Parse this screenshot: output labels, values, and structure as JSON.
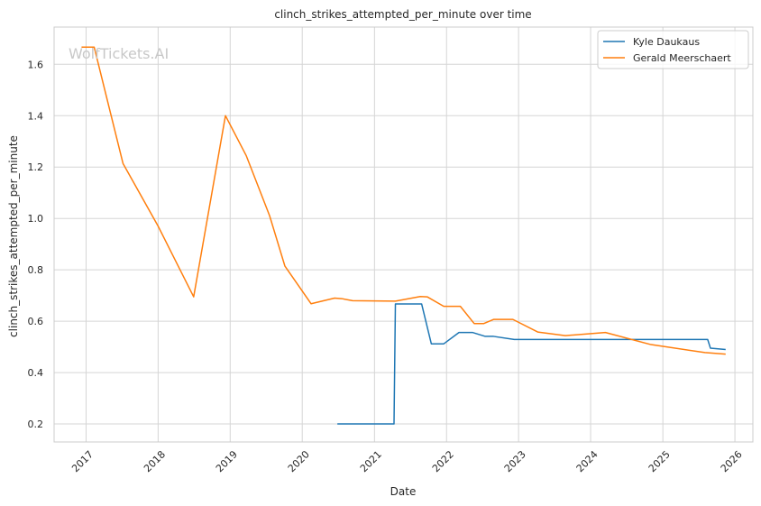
{
  "chart_data": {
    "type": "line",
    "title": "clinch_strikes_attempted_per_minute over time",
    "xlabel": "Date",
    "ylabel": "clinch_strikes_attempted_per_minute",
    "watermark": "WolfTickets.AI",
    "x_ticks": [
      "2017",
      "2018",
      "2019",
      "2020",
      "2021",
      "2022",
      "2023",
      "2024",
      "2025",
      "2026"
    ],
    "y_ticks": [
      "0.2",
      "0.4",
      "0.6",
      "0.8",
      "1.0",
      "1.2",
      "1.4",
      "1.6"
    ],
    "xlim": [
      "2016-07-23",
      "2026-04-02"
    ],
    "ylim": [
      0.13,
      1.745
    ],
    "grid": true,
    "legend_position": "top-right",
    "series": [
      {
        "name": "Kyle Daukaus",
        "color": "#1f77b4",
        "points": [
          {
            "x": "2020-06-27",
            "y": 0.2
          },
          {
            "x": "2021-04-10",
            "y": 0.2
          },
          {
            "x": "2021-04-17",
            "y": 0.667
          },
          {
            "x": "2021-08-28",
            "y": 0.667
          },
          {
            "x": "2021-10-16",
            "y": 0.512
          },
          {
            "x": "2021-12-18",
            "y": 0.512
          },
          {
            "x": "2022-03-05",
            "y": 0.556
          },
          {
            "x": "2022-05-14",
            "y": 0.556
          },
          {
            "x": "2022-07-16",
            "y": 0.541
          },
          {
            "x": "2022-08-27",
            "y": 0.541
          },
          {
            "x": "2022-12-10",
            "y": 0.529
          },
          {
            "x": "2025-08-16",
            "y": 0.529
          },
          {
            "x": "2025-08-30",
            "y": 0.495
          },
          {
            "x": "2025-11-15",
            "y": 0.49
          }
        ]
      },
      {
        "name": "Gerald Meerschaert",
        "color": "#ff7f0e",
        "points": [
          {
            "x": "2016-12-09",
            "y": 1.667
          },
          {
            "x": "2017-02-11",
            "y": 1.667
          },
          {
            "x": "2017-07-07",
            "y": 1.214
          },
          {
            "x": "2018-01-01",
            "y": 0.97
          },
          {
            "x": "2018-06-30",
            "y": 0.695
          },
          {
            "x": "2018-12-08",
            "y": 1.4
          },
          {
            "x": "2019-03-23",
            "y": 1.245
          },
          {
            "x": "2019-07-20",
            "y": 1.01
          },
          {
            "x": "2019-10-05",
            "y": 0.815
          },
          {
            "x": "2020-02-15",
            "y": 0.668
          },
          {
            "x": "2020-06-13",
            "y": 0.69
          },
          {
            "x": "2020-07-18",
            "y": 0.688
          },
          {
            "x": "2020-09-12",
            "y": 0.68
          },
          {
            "x": "2021-04-17",
            "y": 0.678
          },
          {
            "x": "2021-08-21",
            "y": 0.696
          },
          {
            "x": "2021-09-25",
            "y": 0.695
          },
          {
            "x": "2021-12-18",
            "y": 0.658
          },
          {
            "x": "2022-03-12",
            "y": 0.658
          },
          {
            "x": "2022-05-21",
            "y": 0.591
          },
          {
            "x": "2022-07-09",
            "y": 0.591
          },
          {
            "x": "2022-08-27",
            "y": 0.607
          },
          {
            "x": "2022-12-03",
            "y": 0.607
          },
          {
            "x": "2023-04-08",
            "y": 0.558
          },
          {
            "x": "2023-08-26",
            "y": 0.544
          },
          {
            "x": "2024-03-16",
            "y": 0.556
          },
          {
            "x": "2024-11-02",
            "y": 0.509
          },
          {
            "x": "2025-08-02",
            "y": 0.478
          },
          {
            "x": "2025-11-15",
            "y": 0.472
          }
        ]
      }
    ]
  }
}
